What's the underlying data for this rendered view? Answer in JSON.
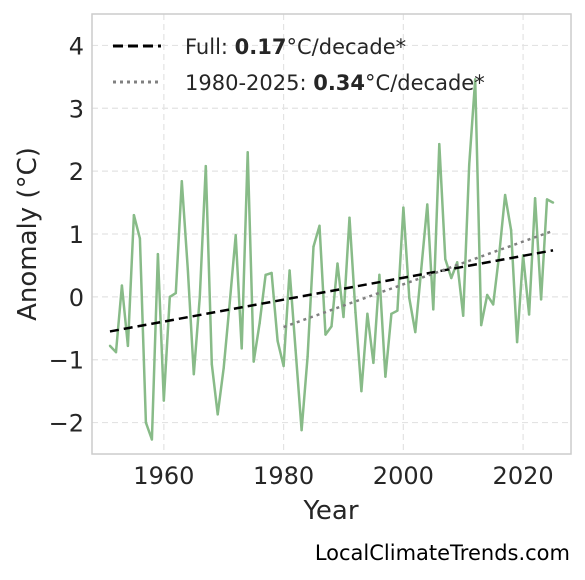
{
  "chart_data": {
    "type": "line",
    "xlabel": "Year",
    "ylabel": "Anomaly (°C)",
    "xlim": [
      1948,
      2028
    ],
    "ylim": [
      -2.5,
      4.5
    ],
    "xticks": [
      1960,
      1980,
      2000,
      2020
    ],
    "yticks": [
      -2,
      -1,
      0,
      1,
      2,
      3,
      4
    ],
    "grid": true,
    "legend_position": "top-left",
    "colors": {
      "series": "#88bb88",
      "full_trend": "#000000",
      "recent_trend": "#808080"
    },
    "series": [
      {
        "values_x": [
          1951,
          1952,
          1953,
          1954,
          1955,
          1956,
          1957,
          1958,
          1959,
          1960,
          1961,
          1962,
          1963,
          1964,
          1965,
          1966,
          1967,
          1968,
          1969,
          1970,
          1971,
          1972,
          1973,
          1974,
          1975,
          1976,
          1977,
          1978,
          1979,
          1980,
          1981,
          1982,
          1983,
          1984,
          1985,
          1986,
          1987,
          1988,
          1989,
          1990,
          1991,
          1992,
          1993,
          1994,
          1995,
          1996,
          1997,
          1998,
          1999,
          2000,
          2001,
          2002,
          2003,
          2004,
          2005,
          2006,
          2007,
          2008,
          2009,
          2010,
          2011,
          2012,
          2013,
          2014,
          2015,
          2016,
          2017,
          2018,
          2019,
          2020,
          2021,
          2022,
          2023,
          2024,
          2025
        ],
        "values_y": [
          -0.78,
          -0.88,
          0.18,
          -0.78,
          1.3,
          0.93,
          -2.0,
          -2.27,
          0.68,
          -1.65,
          0.0,
          0.06,
          1.84,
          0.44,
          -1.23,
          0.0,
          2.08,
          -1.07,
          -1.87,
          -1.13,
          -0.1,
          0.98,
          -0.82,
          2.3,
          -1.03,
          -0.42,
          0.35,
          0.38,
          -0.7,
          -1.1,
          0.42,
          -0.85,
          -2.12,
          -0.95,
          0.8,
          1.13,
          -0.6,
          -0.47,
          0.53,
          -0.32,
          1.26,
          -0.25,
          -1.5,
          -0.27,
          -1.05,
          0.35,
          -1.27,
          -0.27,
          -0.22,
          1.42,
          -0.02,
          -0.56,
          0.45,
          1.47,
          -0.2,
          2.43,
          0.6,
          0.3,
          0.55,
          -0.3,
          2.1,
          3.46,
          -0.45,
          0.03,
          -0.12,
          0.66,
          1.62,
          1.06,
          -0.72,
          0.66,
          -0.28,
          1.57,
          -0.04,
          1.55,
          1.5
        ]
      }
    ],
    "trends": [
      {
        "label_prefix": "Full: ",
        "label_value": "0.17",
        "label_suffix": "°C/decade*",
        "x": [
          1951,
          2025
        ],
        "y": [
          -0.55,
          0.74
        ]
      },
      {
        "label_prefix": "1980-2025: ",
        "label_value": "0.34",
        "label_suffix": "°C/decade*",
        "x": [
          1980,
          2025
        ],
        "y": [
          -0.48,
          1.05
        ]
      }
    ]
  },
  "watermark": "LocalClimateTrends.com"
}
